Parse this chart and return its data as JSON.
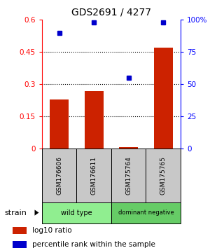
{
  "title": "GDS2691 / 4277",
  "samples": [
    "GSM176606",
    "GSM176611",
    "GSM175764",
    "GSM175765"
  ],
  "log10_ratio": [
    0.23,
    0.27,
    0.008,
    0.47
  ],
  "percentile_rank": [
    90,
    98,
    55,
    98
  ],
  "groups": [
    {
      "label": "wild type",
      "color": "#90EE90",
      "span": [
        0,
        2
      ]
    },
    {
      "label": "dominant negative",
      "color": "#66CC66",
      "span": [
        2,
        4
      ]
    }
  ],
  "ylim_left": [
    0,
    0.6
  ],
  "ylim_right": [
    0,
    100
  ],
  "yticks_left": [
    0,
    0.15,
    0.3,
    0.45,
    0.6
  ],
  "ytick_labels_left": [
    "0",
    "0.15",
    "0.3",
    "0.45",
    "0.6"
  ],
  "yticks_right": [
    0,
    25,
    50,
    75,
    100
  ],
  "ytick_labels_right": [
    "0",
    "25",
    "50",
    "75",
    "100%"
  ],
  "hlines": [
    0.15,
    0.3,
    0.45
  ],
  "bar_color": "#CC2200",
  "dot_color": "#0000CC",
  "bar_width": 0.55,
  "legend_items": [
    {
      "color": "#CC2200",
      "label": "log10 ratio"
    },
    {
      "color": "#0000CC",
      "label": "percentile rank within the sample"
    }
  ],
  "strain_label": "strain",
  "figsize": [
    3.0,
    3.54
  ],
  "dpi": 100
}
